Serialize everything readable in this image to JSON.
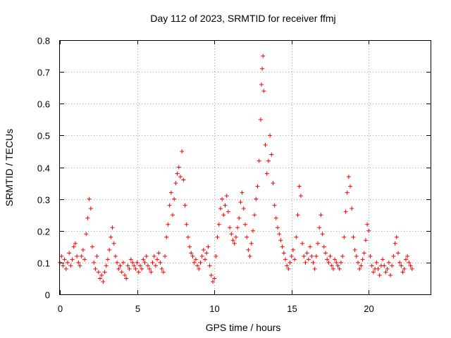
{
  "chart_data": {
    "type": "scatter",
    "title": "Day 112 of 2023, SRMTID for receiver ffmj",
    "xlabel": "GPS time / hours",
    "ylabel": "SRMTID / TECUs",
    "xlim": [
      0,
      24
    ],
    "ylim": [
      0,
      0.8
    ],
    "x_ticks": [
      0,
      5,
      10,
      15,
      20
    ],
    "y_ticks": [
      0,
      0.1,
      0.2,
      0.3,
      0.4,
      0.5,
      0.6,
      0.7,
      0.8
    ],
    "x_tick_labels": [
      "0",
      "5",
      "10",
      "15",
      "20"
    ],
    "y_tick_labels": [
      "0",
      "0.1",
      "0.2",
      "0.3",
      "0.4",
      "0.5",
      "0.6",
      "0.7",
      "0.8"
    ],
    "grid": true,
    "marker": "+",
    "color": "#ff0000",
    "series": [
      {
        "name": "SRMTID",
        "points": [
          [
            0.0,
            0.1
          ],
          [
            0.1,
            0.12
          ],
          [
            0.2,
            0.09
          ],
          [
            0.3,
            0.11
          ],
          [
            0.4,
            0.08
          ],
          [
            0.5,
            0.1
          ],
          [
            0.6,
            0.13
          ],
          [
            0.7,
            0.09
          ],
          [
            0.8,
            0.11
          ],
          [
            0.9,
            0.15
          ],
          [
            1.0,
            0.16
          ],
          [
            1.1,
            0.12
          ],
          [
            1.2,
            0.1
          ],
          [
            1.3,
            0.09
          ],
          [
            1.4,
            0.12
          ],
          [
            1.5,
            0.14
          ],
          [
            1.6,
            0.11
          ],
          [
            1.7,
            0.19
          ],
          [
            1.8,
            0.24
          ],
          [
            1.9,
            0.3
          ],
          [
            2.0,
            0.27
          ],
          [
            2.1,
            0.15
          ],
          [
            2.2,
            0.1
          ],
          [
            2.3,
            0.08
          ],
          [
            2.4,
            0.12
          ],
          [
            2.5,
            0.07
          ],
          [
            2.6,
            0.05
          ],
          [
            2.7,
            0.06
          ],
          [
            2.8,
            0.04
          ],
          [
            2.9,
            0.07
          ],
          [
            3.0,
            0.09
          ],
          [
            3.1,
            0.11
          ],
          [
            3.2,
            0.14
          ],
          [
            3.3,
            0.18
          ],
          [
            3.4,
            0.21
          ],
          [
            3.5,
            0.16
          ],
          [
            3.6,
            0.12
          ],
          [
            3.7,
            0.1
          ],
          [
            3.8,
            0.08
          ],
          [
            3.9,
            0.09
          ],
          [
            4.0,
            0.07
          ],
          [
            4.1,
            0.1
          ],
          [
            4.2,
            0.06
          ],
          [
            4.3,
            0.05
          ],
          [
            4.4,
            0.09
          ],
          [
            4.5,
            0.08
          ],
          [
            4.6,
            0.11
          ],
          [
            4.7,
            0.1
          ],
          [
            4.8,
            0.09
          ],
          [
            4.9,
            0.08
          ],
          [
            5.0,
            0.1
          ],
          [
            5.1,
            0.07
          ],
          [
            5.2,
            0.09
          ],
          [
            5.3,
            0.08
          ],
          [
            5.4,
            0.11
          ],
          [
            5.5,
            0.1
          ],
          [
            5.6,
            0.12
          ],
          [
            5.7,
            0.09
          ],
          [
            5.8,
            0.08
          ],
          [
            5.9,
            0.07
          ],
          [
            6.0,
            0.1
          ],
          [
            6.1,
            0.12
          ],
          [
            6.2,
            0.09
          ],
          [
            6.3,
            0.11
          ],
          [
            6.4,
            0.13
          ],
          [
            6.5,
            0.1
          ],
          [
            6.6,
            0.08
          ],
          [
            6.7,
            0.07
          ],
          [
            6.8,
            0.12
          ],
          [
            6.9,
            0.18
          ],
          [
            7.0,
            0.22
          ],
          [
            7.1,
            0.28
          ],
          [
            7.2,
            0.32
          ],
          [
            7.3,
            0.25
          ],
          [
            7.4,
            0.3
          ],
          [
            7.5,
            0.35
          ],
          [
            7.6,
            0.38
          ],
          [
            7.7,
            0.4
          ],
          [
            7.8,
            0.37
          ],
          [
            7.9,
            0.45
          ],
          [
            8.0,
            0.36
          ],
          [
            8.1,
            0.28
          ],
          [
            8.2,
            0.22
          ],
          [
            8.3,
            0.18
          ],
          [
            8.4,
            0.15
          ],
          [
            8.5,
            0.13
          ],
          [
            8.6,
            0.12
          ],
          [
            8.7,
            0.1
          ],
          [
            8.8,
            0.11
          ],
          [
            8.9,
            0.09
          ],
          [
            9.0,
            0.08
          ],
          [
            9.1,
            0.1
          ],
          [
            9.2,
            0.12
          ],
          [
            9.3,
            0.14
          ],
          [
            9.4,
            0.11
          ],
          [
            9.5,
            0.13
          ],
          [
            9.6,
            0.15
          ],
          [
            9.7,
            0.09
          ],
          [
            9.8,
            0.06
          ],
          [
            9.9,
            0.04
          ],
          [
            10.0,
            0.05
          ],
          [
            10.1,
            0.12
          ],
          [
            10.2,
            0.18
          ],
          [
            10.3,
            0.22
          ],
          [
            10.4,
            0.27
          ],
          [
            10.5,
            0.3
          ],
          [
            10.6,
            0.25
          ],
          [
            10.7,
            0.28
          ],
          [
            10.8,
            0.31
          ],
          [
            10.9,
            0.26
          ],
          [
            11.0,
            0.21
          ],
          [
            11.1,
            0.19
          ],
          [
            11.2,
            0.17
          ],
          [
            11.3,
            0.16
          ],
          [
            11.4,
            0.18
          ],
          [
            11.5,
            0.21
          ],
          [
            11.6,
            0.24
          ],
          [
            11.7,
            0.29
          ],
          [
            11.8,
            0.32
          ],
          [
            11.9,
            0.27
          ],
          [
            12.0,
            0.22
          ],
          [
            12.1,
            0.18
          ],
          [
            12.2,
            0.14
          ],
          [
            12.3,
            0.12
          ],
          [
            12.4,
            0.16
          ],
          [
            12.5,
            0.2
          ],
          [
            12.6,
            0.25
          ],
          [
            12.7,
            0.3
          ],
          [
            12.8,
            0.34
          ],
          [
            12.9,
            0.42
          ],
          [
            13.0,
            0.55
          ],
          [
            13.05,
            0.66
          ],
          [
            13.1,
            0.71
          ],
          [
            13.15,
            0.75
          ],
          [
            13.2,
            0.64
          ],
          [
            13.3,
            0.47
          ],
          [
            13.4,
            0.38
          ],
          [
            13.5,
            0.42
          ],
          [
            13.6,
            0.5
          ],
          [
            13.7,
            0.44
          ],
          [
            13.8,
            0.35
          ],
          [
            13.9,
            0.28
          ],
          [
            14.0,
            0.24
          ],
          [
            14.1,
            0.21
          ],
          [
            14.2,
            0.19
          ],
          [
            14.3,
            0.17
          ],
          [
            14.4,
            0.15
          ],
          [
            14.5,
            0.13
          ],
          [
            14.6,
            0.11
          ],
          [
            14.7,
            0.09
          ],
          [
            14.8,
            0.08
          ],
          [
            14.9,
            0.1
          ],
          [
            15.0,
            0.12
          ],
          [
            15.1,
            0.14
          ],
          [
            15.2,
            0.11
          ],
          [
            15.3,
            0.18
          ],
          [
            15.4,
            0.25
          ],
          [
            15.5,
            0.34
          ],
          [
            15.6,
            0.31
          ],
          [
            15.7,
            0.16
          ],
          [
            15.8,
            0.12
          ],
          [
            15.9,
            0.1
          ],
          [
            16.0,
            0.13
          ],
          [
            16.1,
            0.11
          ],
          [
            16.2,
            0.15
          ],
          [
            16.3,
            0.12
          ],
          [
            16.4,
            0.1
          ],
          [
            16.5,
            0.08
          ],
          [
            16.6,
            0.12
          ],
          [
            16.7,
            0.16
          ],
          [
            16.8,
            0.21
          ],
          [
            16.9,
            0.25
          ],
          [
            17.0,
            0.19
          ],
          [
            17.1,
            0.15
          ],
          [
            17.2,
            0.13
          ],
          [
            17.3,
            0.11
          ],
          [
            17.4,
            0.1
          ],
          [
            17.5,
            0.12
          ],
          [
            17.6,
            0.09
          ],
          [
            17.7,
            0.08
          ],
          [
            17.8,
            0.11
          ],
          [
            17.9,
            0.1
          ],
          [
            18.0,
            0.09
          ],
          [
            18.1,
            0.08
          ],
          [
            18.2,
            0.1
          ],
          [
            18.3,
            0.12
          ],
          [
            18.4,
            0.18
          ],
          [
            18.5,
            0.26
          ],
          [
            18.6,
            0.32
          ],
          [
            18.7,
            0.37
          ],
          [
            18.8,
            0.34
          ],
          [
            18.9,
            0.27
          ],
          [
            19.0,
            0.18
          ],
          [
            19.1,
            0.14
          ],
          [
            19.2,
            0.12
          ],
          [
            19.3,
            0.1
          ],
          [
            19.4,
            0.08
          ],
          [
            19.5,
            0.09
          ],
          [
            19.6,
            0.11
          ],
          [
            19.7,
            0.13
          ],
          [
            19.8,
            0.17
          ],
          [
            19.9,
            0.22
          ],
          [
            20.0,
            0.2
          ],
          [
            20.1,
            0.12
          ],
          [
            20.2,
            0.09
          ],
          [
            20.3,
            0.07
          ],
          [
            20.4,
            0.08
          ],
          [
            20.5,
            0.1
          ],
          [
            20.6,
            0.08
          ],
          [
            20.7,
            0.06
          ],
          [
            20.8,
            0.09
          ],
          [
            20.9,
            0.11
          ],
          [
            21.0,
            0.09
          ],
          [
            21.1,
            0.07
          ],
          [
            21.2,
            0.08
          ],
          [
            21.3,
            0.1
          ],
          [
            21.4,
            0.06
          ],
          [
            21.5,
            0.09
          ],
          [
            21.6,
            0.12
          ],
          [
            21.7,
            0.16
          ],
          [
            21.8,
            0.18
          ],
          [
            21.9,
            0.13
          ],
          [
            22.0,
            0.1
          ],
          [
            22.1,
            0.09
          ],
          [
            22.2,
            0.07
          ],
          [
            22.3,
            0.08
          ],
          [
            22.4,
            0.11
          ],
          [
            22.5,
            0.12
          ],
          [
            22.6,
            0.1
          ],
          [
            22.7,
            0.09
          ],
          [
            22.8,
            0.08
          ]
        ]
      }
    ]
  }
}
